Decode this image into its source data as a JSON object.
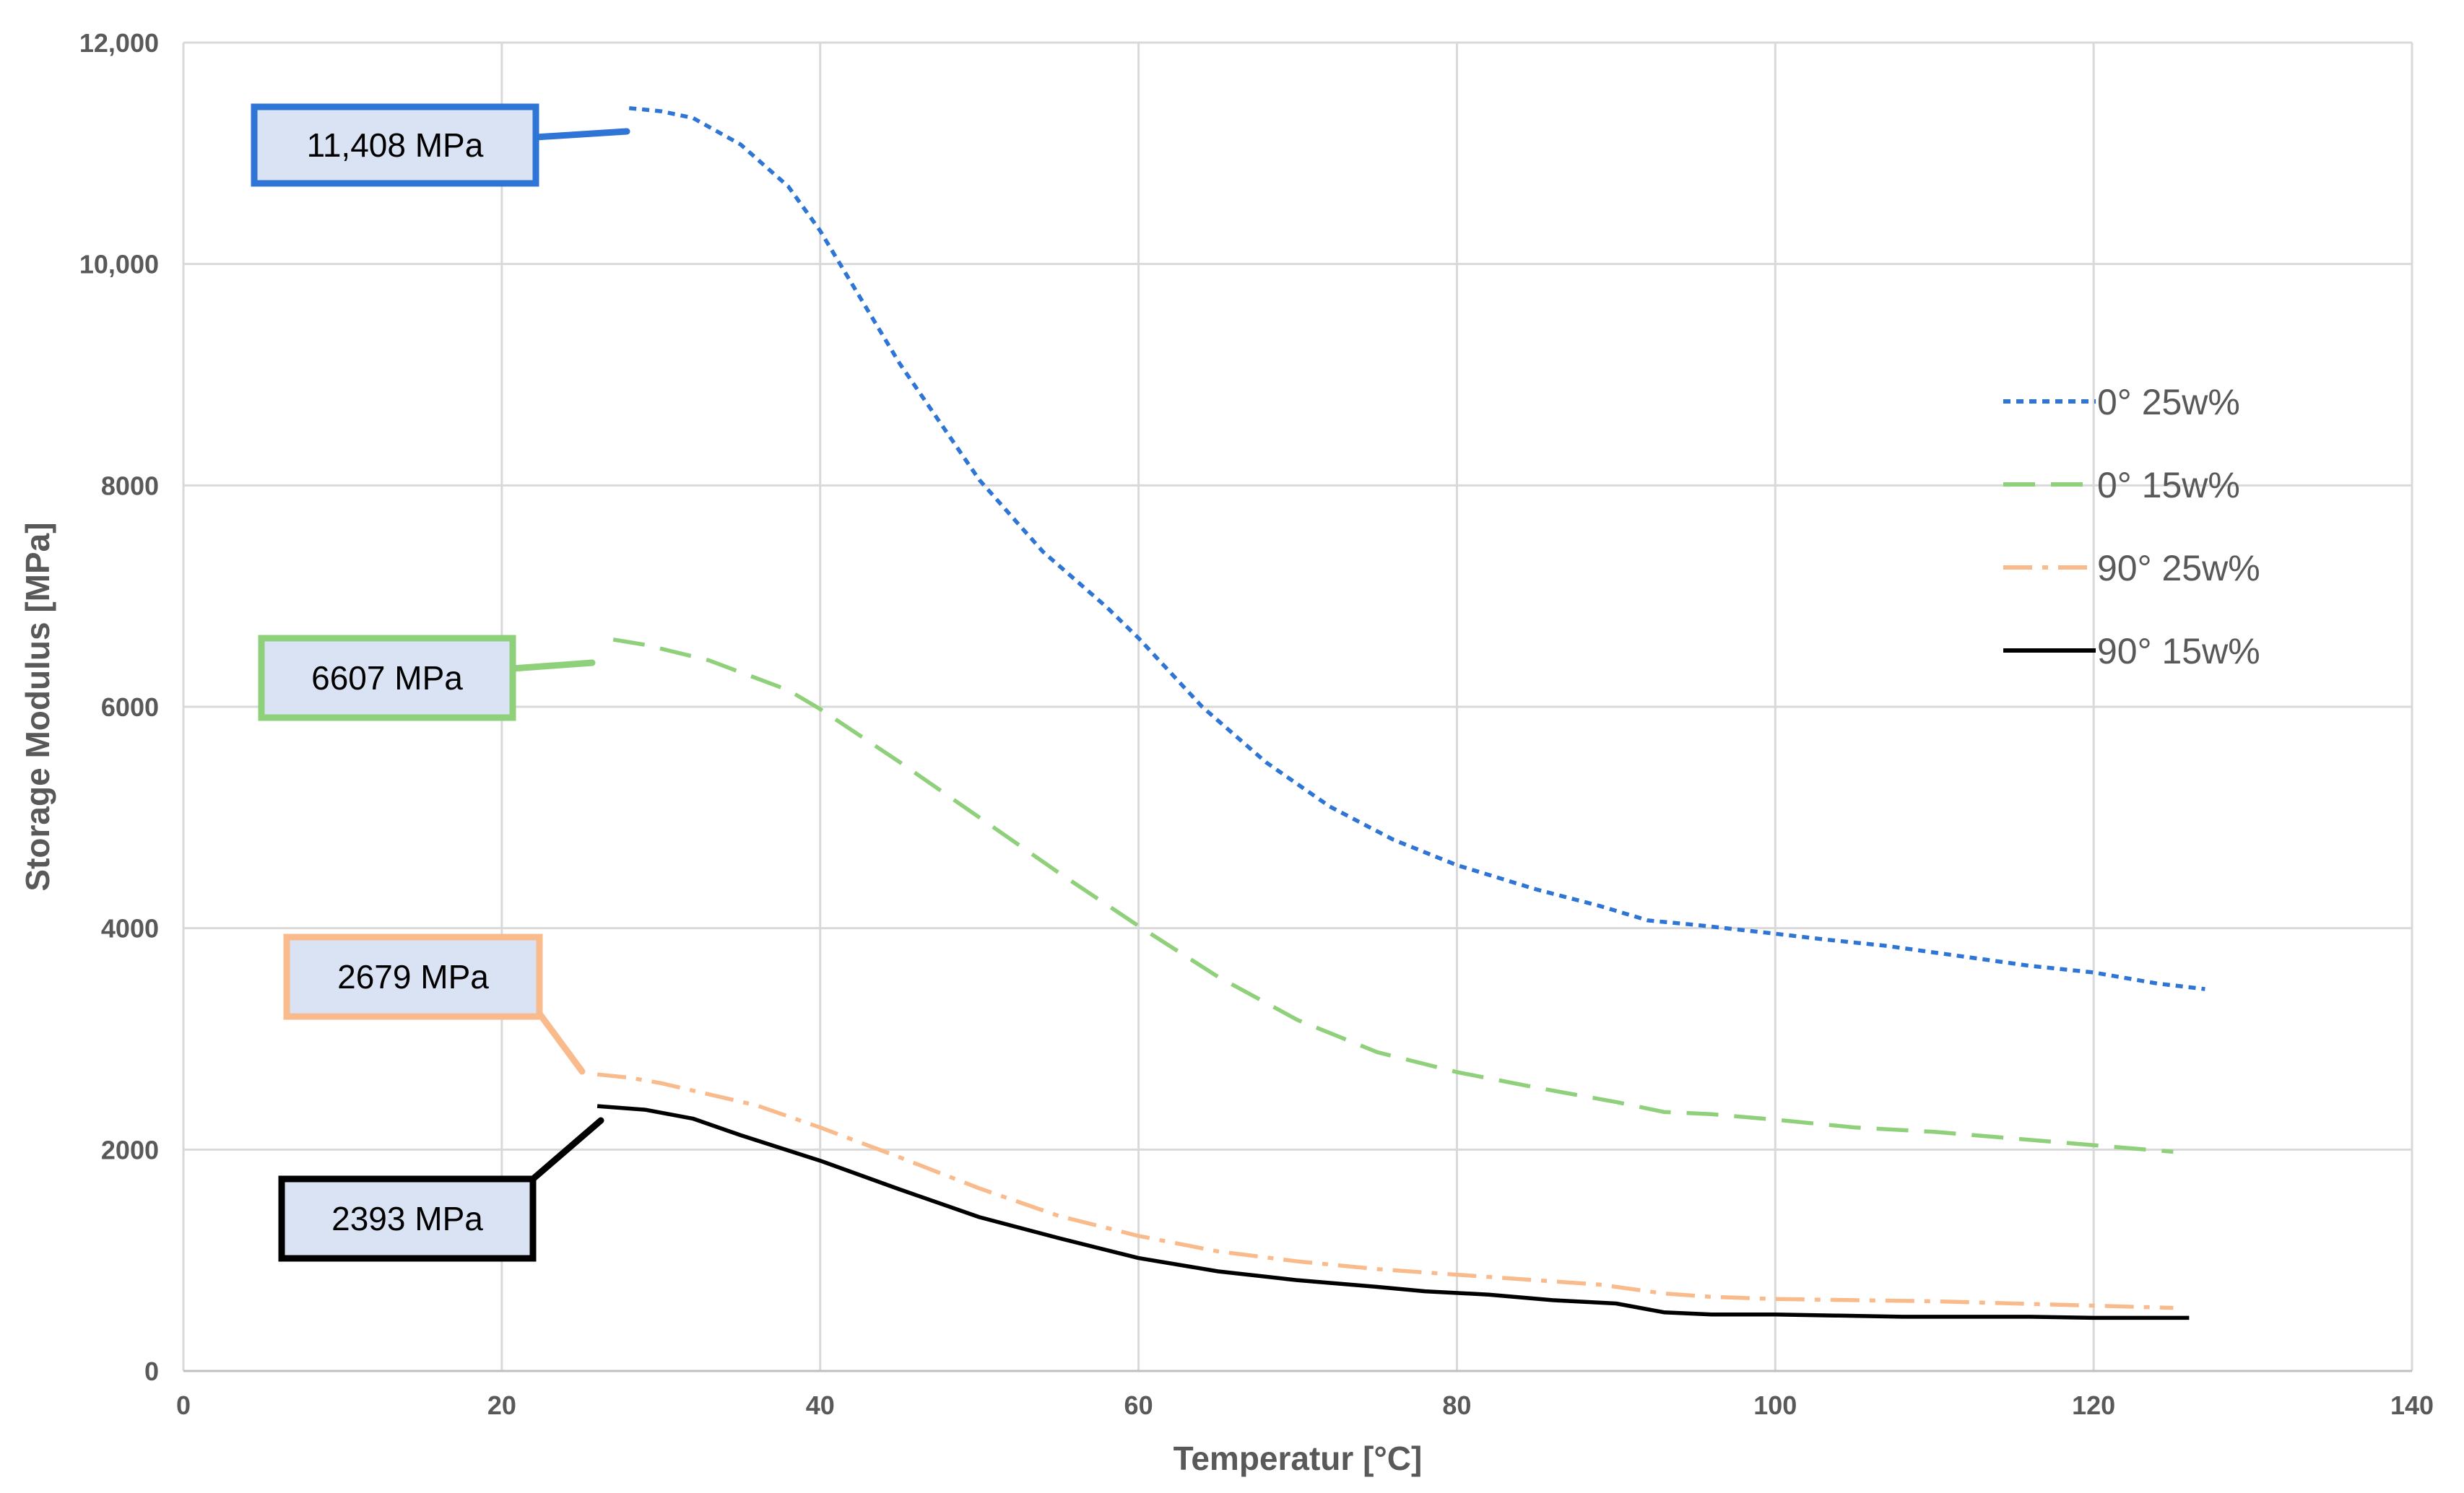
{
  "chart_data": {
    "type": "line",
    "title": "",
    "xlabel": "Temperatur [°C]",
    "ylabel": "Storage Modulus [MPa]",
    "xlim": [
      0,
      140
    ],
    "ylim": [
      0,
      12000
    ],
    "xticks": [
      0,
      20,
      40,
      60,
      80,
      100,
      120,
      140
    ],
    "xtick_labels": [
      "0",
      "20",
      "40",
      "60",
      "80",
      "100",
      "120",
      "140"
    ],
    "yticks": [
      0,
      2000,
      4000,
      6000,
      8000,
      10000,
      12000
    ],
    "ytick_labels": [
      "0",
      "2000",
      "4000",
      "6000",
      "8000",
      "10,000",
      "12,000"
    ],
    "grid": true,
    "legend_position": "right",
    "series": [
      {
        "name": "0° 25w%",
        "color": "#2E75D6",
        "dash": "short-dash",
        "x": [
          28,
          30,
          32,
          35,
          38,
          40,
          45,
          50,
          54,
          58,
          60,
          64,
          68,
          72,
          76,
          80,
          85,
          89,
          92,
          95,
          100,
          103,
          107,
          112,
          116,
          120,
          124,
          127
        ],
        "y": [
          11408,
          11380,
          11320,
          11080,
          10700,
          10300,
          9100,
          8050,
          7400,
          6900,
          6620,
          6000,
          5500,
          5100,
          4800,
          4570,
          4350,
          4200,
          4070,
          4030,
          3950,
          3900,
          3840,
          3740,
          3660,
          3600,
          3500,
          3450
        ]
      },
      {
        "name": "0° 15w%",
        "color": "#8FD07A",
        "dash": "long-dash",
        "x": [
          27,
          29,
          33,
          38,
          40,
          45,
          50,
          55,
          60,
          65,
          70,
          75,
          80,
          85,
          90,
          93,
          96,
          100,
          105,
          110,
          115,
          120,
          125
        ],
        "y": [
          6607,
          6560,
          6420,
          6150,
          5980,
          5500,
          5000,
          4500,
          4020,
          3560,
          3170,
          2880,
          2700,
          2560,
          2430,
          2340,
          2320,
          2270,
          2200,
          2160,
          2100,
          2040,
          1980
        ]
      },
      {
        "name": "90° 25w%",
        "color": "#F9BB8C",
        "dash": "dash-dot",
        "x": [
          26,
          28,
          30,
          33,
          36,
          40,
          45,
          50,
          55,
          60,
          65,
          70,
          75,
          80,
          85,
          89,
          93,
          96,
          100,
          105,
          110,
          115,
          120,
          125
        ],
        "y": [
          2679,
          2650,
          2600,
          2500,
          2400,
          2200,
          1930,
          1650,
          1400,
          1220,
          1080,
          990,
          920,
          870,
          820,
          780,
          700,
          670,
          650,
          640,
          630,
          610,
          590,
          570
        ]
      },
      {
        "name": "90° 15w%",
        "color": "#000000",
        "dash": "solid",
        "x": [
          26,
          29,
          32,
          35,
          40,
          45,
          50,
          55,
          60,
          65,
          70,
          75,
          78,
          82,
          86,
          90,
          93,
          96,
          100,
          104,
          108,
          112,
          116,
          120,
          124,
          126
        ],
        "y": [
          2393,
          2360,
          2280,
          2130,
          1900,
          1640,
          1390,
          1200,
          1020,
          900,
          820,
          760,
          720,
          690,
          640,
          610,
          530,
          510,
          510,
          500,
          490,
          490,
          490,
          480,
          480,
          480
        ]
      }
    ],
    "annotations": [
      {
        "text": "11,408 MPa",
        "series_index": 0,
        "x": 28,
        "y": 11408
      },
      {
        "text": "6607 MPa",
        "series_index": 1,
        "x": 27,
        "y": 6607
      },
      {
        "text": "2679 MPa",
        "series_index": 2,
        "x": 26,
        "y": 2679
      },
      {
        "text": "2393 MPa",
        "series_index": 3,
        "x": 26,
        "y": 2393
      }
    ],
    "callout_fill": "#DAE3F3"
  }
}
